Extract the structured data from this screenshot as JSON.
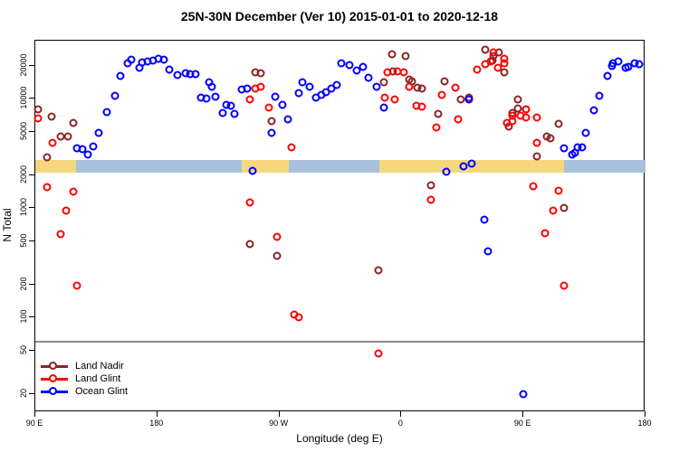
{
  "title": "25N-30N December (Ver 10)   2015-01-01 to 2020-12-18",
  "xlabel": "Longitude (deg E)",
  "ylabel": "N Total",
  "colors": {
    "land_nadir": "#8B2323",
    "land_glint": "#FF0000",
    "ocean_glint": "#0000FF",
    "band_land": "#F5D87E",
    "band_ocean": "#A9C0DC",
    "ref_line": "#8a8a8a"
  },
  "chart_data": {
    "type": "scatter",
    "title": "25N-30N December (Ver 10)   2015-01-01 to 2020-12-18",
    "xlabel": "Longitude (deg E)",
    "ylabel": "N Total",
    "x_axis": {
      "note": "longitude axis wraps: left edge 90E eastward to 180 again",
      "range_units": [
        90,
        540
      ],
      "ticks": [
        {
          "pos": 90,
          "label": "90 E"
        },
        {
          "pos": 180,
          "label": "180"
        },
        {
          "pos": 270,
          "label": "90 W"
        },
        {
          "pos": 360,
          "label": "0"
        },
        {
          "pos": 450,
          "label": "90 E"
        },
        {
          "pos": 540,
          "label": "180"
        }
      ]
    },
    "y_axis": {
      "scale": "log10",
      "range": [
        13,
        34000
      ],
      "ticks": [
        20000,
        10000,
        5000,
        2000,
        1000,
        500,
        200,
        100,
        50,
        20
      ]
    },
    "reference_line_y": 62,
    "surface_band": {
      "y_value_top": 2750,
      "y_value_bottom": 2100,
      "segments": [
        {
          "type": "land",
          "from": 90,
          "to": 120
        },
        {
          "type": "ocean",
          "from": 120,
          "to": 242
        },
        {
          "type": "land",
          "from": 242,
          "to": 277
        },
        {
          "type": "ocean",
          "from": 277,
          "to": 344
        },
        {
          "type": "land",
          "from": 344,
          "to": 480
        },
        {
          "type": "ocean",
          "from": 480,
          "to": 540
        }
      ]
    },
    "legend_position": "bottom-left",
    "series": [
      {
        "name": "Land Nadir",
        "color_key": "land_nadir",
        "points": [
          [
            92,
            8020
          ],
          [
            102,
            6880
          ],
          [
            118,
            6030
          ],
          [
            109,
            4530
          ],
          [
            114,
            4530
          ],
          [
            99,
            2920
          ],
          [
            252,
            17500
          ],
          [
            256,
            17100
          ],
          [
            264,
            6260
          ],
          [
            248,
            471
          ],
          [
            268,
            367
          ],
          [
            343,
            271
          ],
          [
            353,
            25600
          ],
          [
            363,
            24600
          ],
          [
            354,
            17800
          ],
          [
            347,
            14200
          ],
          [
            366,
            15000
          ],
          [
            368,
            14500
          ],
          [
            372,
            12600
          ],
          [
            375,
            12400
          ],
          [
            392,
            14500
          ],
          [
            387,
            7290
          ],
          [
            404,
            9890
          ],
          [
            410,
            10300
          ],
          [
            382,
            1620
          ],
          [
            422,
            28200
          ],
          [
            428,
            24600
          ],
          [
            432,
            26600
          ],
          [
            427,
            22400
          ],
          [
            436,
            17500
          ],
          [
            446,
            9890
          ],
          [
            446,
            8170
          ],
          [
            452,
            8020
          ],
          [
            442,
            7430
          ],
          [
            439,
            5590
          ],
          [
            476,
            5910
          ],
          [
            467,
            4530
          ],
          [
            470,
            4370
          ],
          [
            460,
            2980
          ],
          [
            480,
            1010
          ]
        ]
      },
      {
        "name": "Land Glint",
        "color_key": "land_glint",
        "points": [
          [
            92,
            6630
          ],
          [
            103,
            3970
          ],
          [
            99,
            1560
          ],
          [
            118,
            1420
          ],
          [
            113,
            951
          ],
          [
            109,
            581
          ],
          [
            121,
            196
          ],
          [
            252,
            12400
          ],
          [
            256,
            12900
          ],
          [
            248,
            9890
          ],
          [
            262,
            8330
          ],
          [
            279,
            3600
          ],
          [
            248,
            1130
          ],
          [
            268,
            548
          ],
          [
            281,
            107
          ],
          [
            284,
            101
          ],
          [
            343,
            47
          ],
          [
            350,
            17500
          ],
          [
            357,
            17800
          ],
          [
            362,
            17500
          ],
          [
            366,
            12900
          ],
          [
            348,
            10300
          ],
          [
            355,
            9890
          ],
          [
            371,
            8650
          ],
          [
            375,
            8490
          ],
          [
            386,
            5480
          ],
          [
            390,
            10900
          ],
          [
            400,
            12600
          ],
          [
            402,
            6500
          ],
          [
            416,
            18500
          ],
          [
            422,
            20800
          ],
          [
            426,
            22000
          ],
          [
            431,
            19200
          ],
          [
            436,
            21200
          ],
          [
            428,
            26600
          ],
          [
            436,
            23300
          ],
          [
            382,
            1200
          ],
          [
            438,
            6030
          ],
          [
            442,
            7020
          ],
          [
            448,
            7020
          ],
          [
            452,
            6760
          ],
          [
            442,
            6260
          ],
          [
            460,
            6760
          ],
          [
            460,
            3970
          ],
          [
            452,
            8020
          ],
          [
            457,
            1590
          ],
          [
            476,
            1450
          ],
          [
            472,
            951
          ],
          [
            466,
            591
          ],
          [
            480,
            196
          ]
        ]
      },
      {
        "name": "Ocean Glint",
        "color_key": "ocean_glint",
        "points": [
          [
            121,
            3540
          ],
          [
            125,
            3470
          ],
          [
            129,
            3100
          ],
          [
            133,
            3680
          ],
          [
            137,
            4890
          ],
          [
            143,
            7570
          ],
          [
            149,
            10700
          ],
          [
            153,
            16200
          ],
          [
            158,
            21200
          ],
          [
            161,
            22900
          ],
          [
            167,
            19200
          ],
          [
            169,
            21600
          ],
          [
            173,
            22000
          ],
          [
            177,
            22400
          ],
          [
            181,
            23300
          ],
          [
            185,
            22900
          ],
          [
            189,
            18500
          ],
          [
            195,
            16500
          ],
          [
            201,
            17100
          ],
          [
            204,
            16800
          ],
          [
            208,
            16800
          ],
          [
            212,
            10300
          ],
          [
            216,
            10100
          ],
          [
            218,
            14200
          ],
          [
            220,
            12900
          ],
          [
            223,
            10500
          ],
          [
            228,
            7430
          ],
          [
            231,
            8820
          ],
          [
            234,
            8650
          ],
          [
            237,
            7290
          ],
          [
            242,
            12200
          ],
          [
            246,
            12400
          ],
          [
            250,
            2200
          ],
          [
            264,
            4890
          ],
          [
            267,
            10500
          ],
          [
            272,
            8820
          ],
          [
            276,
            6500
          ],
          [
            284,
            11300
          ],
          [
            287,
            14200
          ],
          [
            292,
            12900
          ],
          [
            297,
            10300
          ],
          [
            301,
            10900
          ],
          [
            304,
            11500
          ],
          [
            308,
            12400
          ],
          [
            312,
            13400
          ],
          [
            316,
            21200
          ],
          [
            322,
            20400
          ],
          [
            327,
            18200
          ],
          [
            332,
            19600
          ],
          [
            336,
            15600
          ],
          [
            342,
            12900
          ],
          [
            347,
            8330
          ],
          [
            393,
            2160
          ],
          [
            406,
            2420
          ],
          [
            412,
            2560
          ],
          [
            410,
            9890
          ],
          [
            421,
            787
          ],
          [
            424,
            404
          ],
          [
            450,
            20
          ],
          [
            480,
            3540
          ],
          [
            486,
            3100
          ],
          [
            488,
            3220
          ],
          [
            490,
            3600
          ],
          [
            493,
            3600
          ],
          [
            496,
            4890
          ],
          [
            502,
            7870
          ],
          [
            506,
            10700
          ],
          [
            512,
            16200
          ],
          [
            515,
            20000
          ],
          [
            516,
            21200
          ],
          [
            520,
            22000
          ],
          [
            525,
            19200
          ],
          [
            527,
            19600
          ],
          [
            532,
            21200
          ],
          [
            535,
            20800
          ]
        ]
      }
    ]
  },
  "legend": [
    {
      "label": "Land Nadir",
      "color_key": "land_nadir"
    },
    {
      "label": "Land Glint",
      "color_key": "land_glint"
    },
    {
      "label": "Ocean Glint",
      "color_key": "ocean_glint"
    }
  ]
}
